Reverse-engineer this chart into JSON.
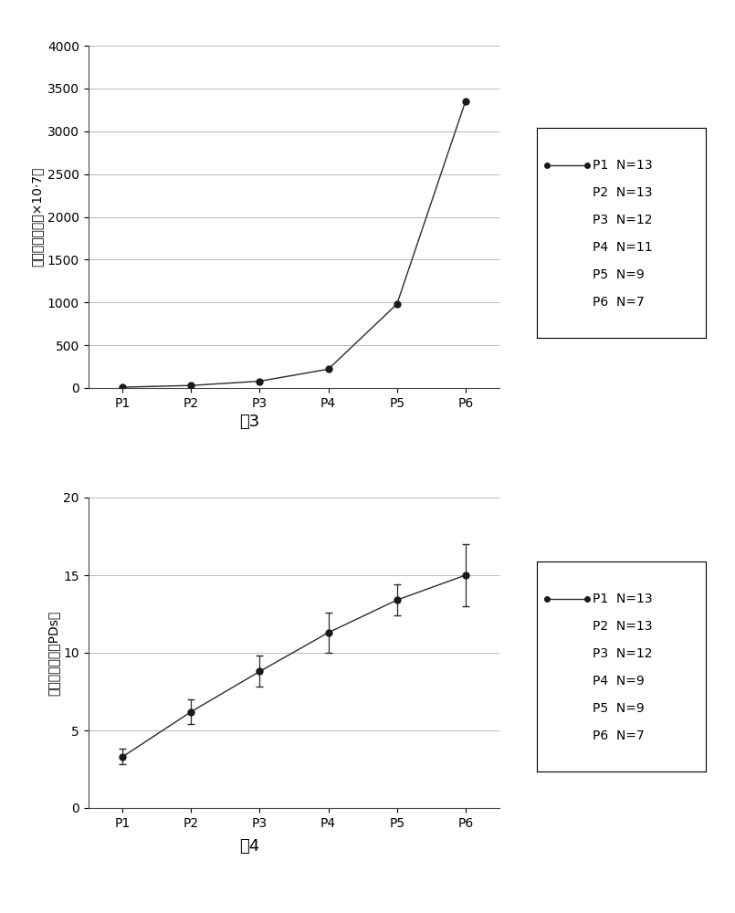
{
  "fig3": {
    "x_labels": [
      "P1",
      "P2",
      "P3",
      "P4",
      "P5",
      "P6"
    ],
    "x_values": [
      1,
      2,
      3,
      4,
      5,
      6
    ],
    "y_values": [
      10,
      30,
      80,
      220,
      980,
      3350
    ],
    "ylim": [
      0,
      4000
    ],
    "yticks": [
      0,
      500,
      1000,
      1500,
      2000,
      2500,
      3000,
      3500,
      4000
    ],
    "ylabel": "收获细胞数目（×10·7）",
    "caption": "图3",
    "legend_entries": [
      "P1  N=13",
      "P2  N=13",
      "P3  N=12",
      "P4  N=11",
      "P5  N=9",
      "P6  N=7"
    ]
  },
  "fig4": {
    "x_labels": [
      "P1",
      "P2",
      "P3",
      "P4",
      "P5",
      "P6"
    ],
    "x_values": [
      1,
      2,
      3,
      4,
      5,
      6
    ],
    "y_values": [
      3.3,
      6.2,
      8.8,
      11.3,
      13.4,
      15.0
    ],
    "y_errors": [
      0.5,
      0.8,
      1.0,
      1.3,
      1.0,
      2.0
    ],
    "ylim": [
      0,
      20
    ],
    "yticks": [
      0,
      5,
      10,
      15,
      20
    ],
    "ylabel": "累积倍增次数（PDs）",
    "caption": "图4",
    "legend_entries": [
      "P1  N=13",
      "P2  N=13",
      "P3  N=12",
      "P4  N=9",
      "P5  N=9",
      "P6  N=7"
    ]
  },
  "line_color": "#2b2b2b",
  "marker": "o",
  "marker_size": 5,
  "marker_color": "#1a1a1a",
  "grid_color": "#b0b0b0",
  "background_color": "#ffffff",
  "font_size_tick": 10,
  "font_size_label": 10,
  "font_size_caption": 13,
  "font_size_legend": 10
}
